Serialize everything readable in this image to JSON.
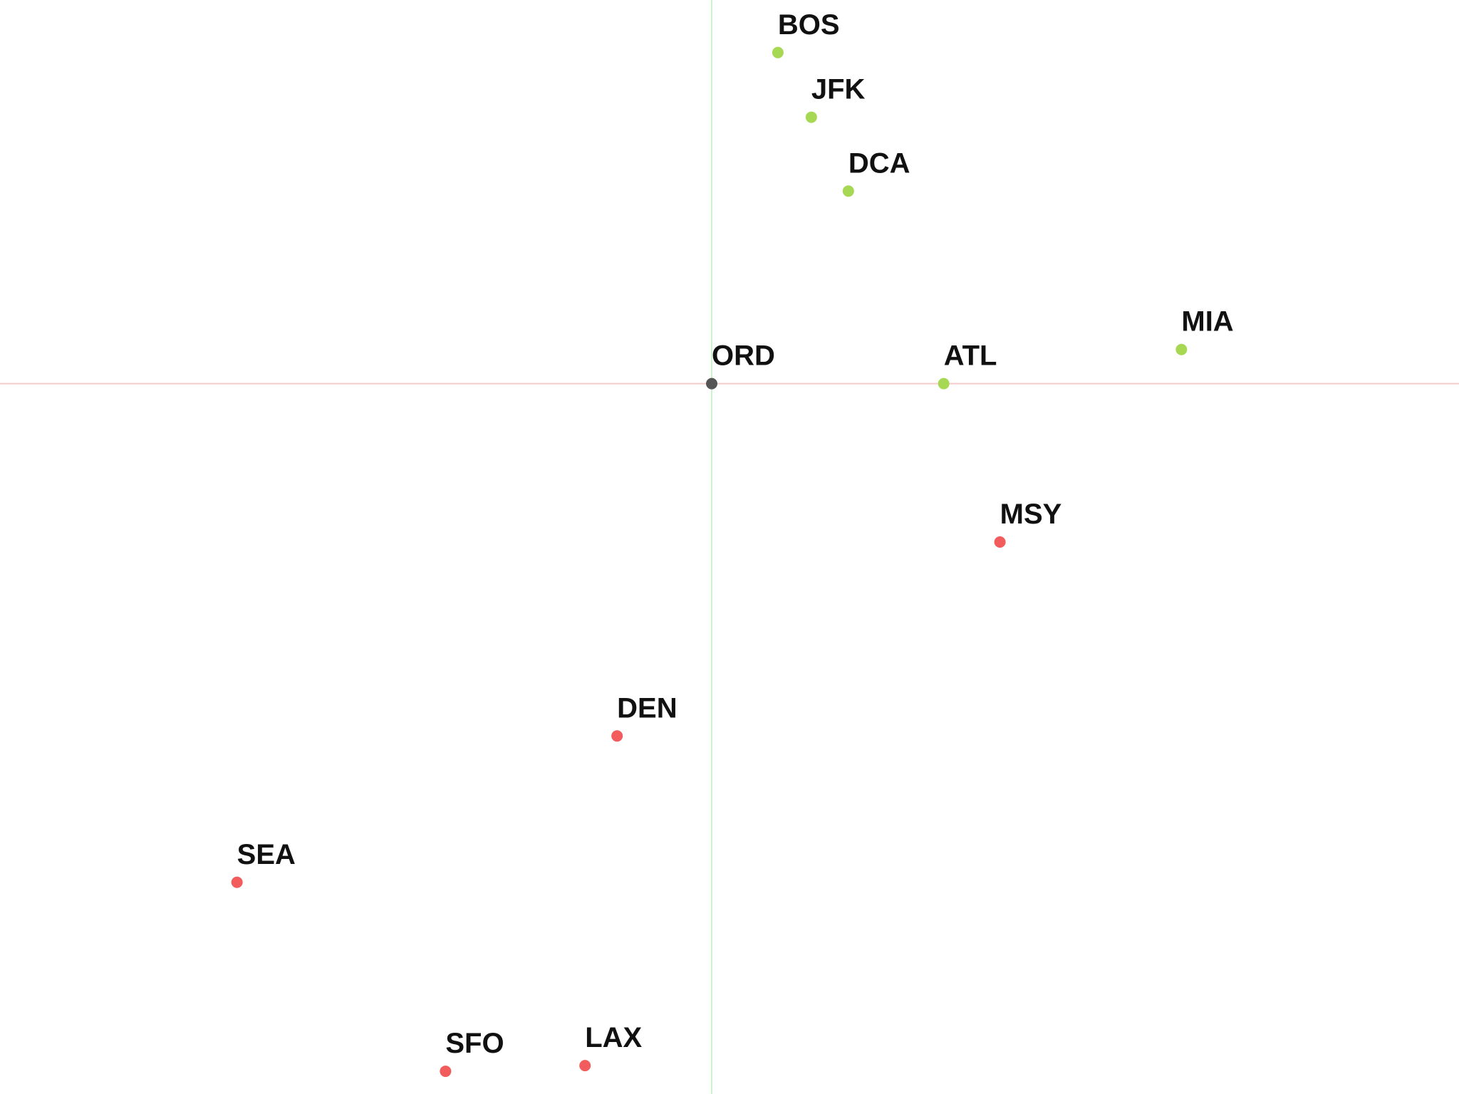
{
  "chart_data": {
    "type": "scatter",
    "title": "",
    "xlabel": "",
    "ylabel": "",
    "xlim": [
      -1000,
      1050
    ],
    "ylim": [
      -1000,
      540
    ],
    "grid": false,
    "axis_colors": {
      "x_axis": "#f4cccc",
      "y_axis": "#ccf4cc"
    },
    "point_colors": {
      "origin": "#555555",
      "positive": "#a6d854",
      "negative": "#f25c5c"
    },
    "points": [
      {
        "label": "BOS",
        "x": 93,
        "y": 466,
        "group": "positive"
      },
      {
        "label": "JFK",
        "x": 140,
        "y": 375,
        "group": "positive"
      },
      {
        "label": "DCA",
        "x": 192,
        "y": 271,
        "group": "positive"
      },
      {
        "label": "MIA",
        "x": 660,
        "y": 48,
        "group": "positive"
      },
      {
        "label": "ORD",
        "x": 0,
        "y": 0,
        "group": "origin"
      },
      {
        "label": "ATL",
        "x": 326,
        "y": 0,
        "group": "positive"
      },
      {
        "label": "MSY",
        "x": 405,
        "y": -223,
        "group": "negative"
      },
      {
        "label": "DEN",
        "x": -133,
        "y": -496,
        "group": "negative"
      },
      {
        "label": "SEA",
        "x": -667,
        "y": -702,
        "group": "negative"
      },
      {
        "label": "SFO",
        "x": -374,
        "y": -968,
        "group": "negative"
      },
      {
        "label": "LAX",
        "x": -178,
        "y": -960,
        "group": "negative"
      }
    ]
  }
}
